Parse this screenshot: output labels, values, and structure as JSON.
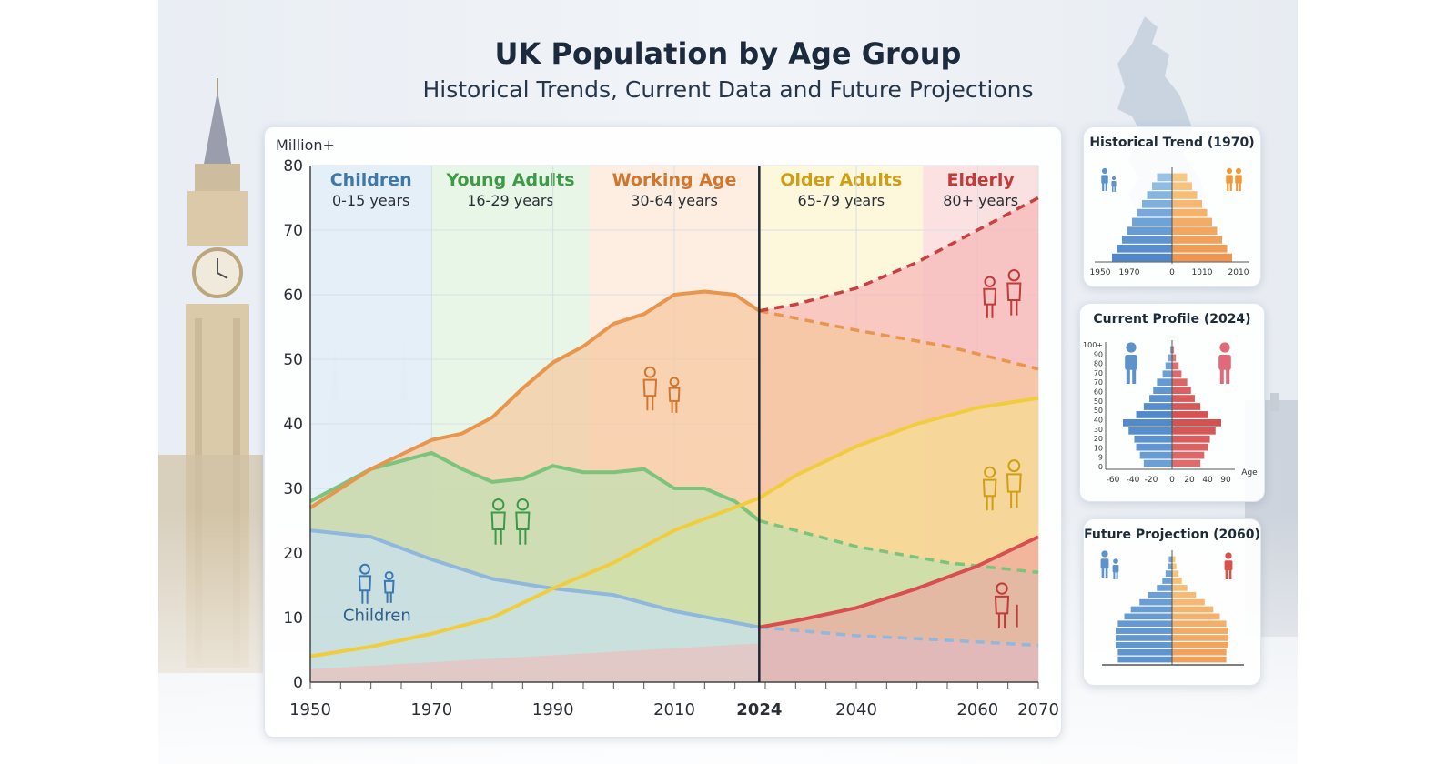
{
  "title": "UK Population by Age Group",
  "subtitle": "Historical Trends, Current Data and Future Projections",
  "colors": {
    "children": "#8fb8dc",
    "young_adults": "#8fcf8f",
    "working_age": "#f0a460",
    "older_adults": "#f2d25a",
    "elderly": "#e06060"
  },
  "chart_data": [
    {
      "type": "area",
      "ylabel": "Million+",
      "ylim": [
        0,
        80
      ],
      "xlim": [
        1950,
        2070
      ],
      "x_ticks": [
        "1950",
        "1970",
        "1990",
        "2010",
        "2024",
        "2040",
        "2060",
        "2070"
      ],
      "x_tick_values": [
        1950,
        1970,
        1990,
        2010,
        2024,
        2040,
        2060,
        2070
      ],
      "y_ticks": [
        "0",
        "10",
        "20",
        "30",
        "40",
        "50",
        "60",
        "70",
        "80"
      ],
      "projection_start": 2024,
      "grid": true,
      "bands": [
        {
          "label": "Children",
          "sub": "0-15 years",
          "from": 1950,
          "to": 1970,
          "color": "#cfe2f3",
          "label_color": "#3f78a8"
        },
        {
          "label": "Young Adults",
          "sub": "16-29 years",
          "from": 1970,
          "to": 1996,
          "color": "#d4efd4",
          "label_color": "#3e9a46"
        },
        {
          "label": "Working Age",
          "sub": "30-64 years",
          "from": 1996,
          "to": 2024,
          "color": "#fbe0c8",
          "label_color": "#d2762e"
        },
        {
          "label": "Older Adults",
          "sub": "65-79 years",
          "from": 2024,
          "to": 2051,
          "color": "#fbf0c0",
          "label_color": "#cf9e16"
        },
        {
          "label": "Elderly",
          "sub": "80+ years",
          "from": 2051,
          "to": 2070,
          "color": "#f7c9c9",
          "label_color": "#c23a3a"
        }
      ],
      "series": [
        {
          "key": "children",
          "color": "#8fb8dc",
          "points": [
            [
              1950,
              23.5
            ],
            [
              1960,
              22.5
            ],
            [
              1970,
              19
            ],
            [
              1980,
              16
            ],
            [
              1990,
              14.5
            ],
            [
              2000,
              13.5
            ],
            [
              2010,
              11
            ],
            [
              2024,
              8.5
            ],
            [
              2040,
              7.2
            ],
            [
              2055,
              6.5
            ],
            [
              2070,
              5.7
            ]
          ]
        },
        {
          "key": "young_adults",
          "color": "#7cc47c",
          "points": [
            [
              1950,
              28
            ],
            [
              1960,
              33
            ],
            [
              1970,
              35.5
            ],
            [
              1975,
              33
            ],
            [
              1980,
              31
            ],
            [
              1985,
              31.5
            ],
            [
              1990,
              33.5
            ],
            [
              1995,
              32.5
            ],
            [
              2000,
              32.5
            ],
            [
              2005,
              33
            ],
            [
              2010,
              30
            ],
            [
              2015,
              30
            ],
            [
              2020,
              28
            ],
            [
              2024,
              25
            ],
            [
              2040,
              21
            ],
            [
              2055,
              18.5
            ],
            [
              2070,
              17
            ]
          ]
        },
        {
          "key": "working_age",
          "color": "#e8954e",
          "points": [
            [
              1950,
              27
            ],
            [
              1960,
              33
            ],
            [
              1970,
              37.5
            ],
            [
              1975,
              38.5
            ],
            [
              1980,
              41
            ],
            [
              1985,
              45.5
            ],
            [
              1990,
              49.5
            ],
            [
              1995,
              52
            ],
            [
              2000,
              55.5
            ],
            [
              2005,
              57
            ],
            [
              2010,
              60
            ],
            [
              2015,
              60.5
            ],
            [
              2020,
              60
            ],
            [
              2024,
              57.5
            ],
            [
              2040,
              54.5
            ],
            [
              2055,
              52
            ],
            [
              2070,
              48.5
            ]
          ]
        },
        {
          "key": "older_adults",
          "color": "#f0cd3e",
          "points": [
            [
              1950,
              4
            ],
            [
              1960,
              5.5
            ],
            [
              1970,
              7.5
            ],
            [
              1980,
              10
            ],
            [
              1990,
              14.5
            ],
            [
              2000,
              18.5
            ],
            [
              2010,
              23.5
            ],
            [
              2024,
              28.5
            ],
            [
              2030,
              32
            ],
            [
              2040,
              36.5
            ],
            [
              2050,
              40
            ],
            [
              2060,
              42.5
            ],
            [
              2070,
              44
            ]
          ]
        },
        {
          "key": "elderly",
          "color": "#d94e4e",
          "points": [
            [
              2024,
              8.5
            ],
            [
              2030,
              9.5
            ],
            [
              2040,
              11.5
            ],
            [
              2050,
              14.5
            ],
            [
              2060,
              18
            ],
            [
              2070,
              22.5
            ]
          ]
        },
        {
          "key": "elderly_total",
          "color": "#c94040",
          "points": [
            [
              2024,
              57.5
            ],
            [
              2030,
              58.5
            ],
            [
              2040,
              61
            ],
            [
              2050,
              65
            ],
            [
              2060,
              70
            ],
            [
              2070,
              75
            ]
          ]
        }
      ],
      "annotations": [
        {
          "text": "Children",
          "x": 1961,
          "y": 9.5
        }
      ]
    },
    {
      "type": "bar",
      "panel": "historical",
      "title": "Historical Trend (1970)",
      "x_ticks": [
        "1950",
        "1970",
        "0",
        "1010",
        "2010"
      ],
      "male": [
        3,
        4,
        5,
        6,
        7,
        8,
        9,
        10,
        11,
        12
      ],
      "female": [
        3,
        4,
        5,
        6,
        7,
        8,
        9,
        10,
        11,
        12
      ]
    },
    {
      "type": "bar",
      "panel": "current",
      "title": "Current Profile (2024)",
      "y_ticks": [
        "100+",
        "90",
        "80",
        "70",
        "70",
        "60",
        "50",
        "50",
        "40",
        "30",
        "20",
        "10",
        "9",
        "0"
      ],
      "x_ticks": [
        "-60",
        "-40",
        "-20",
        "0",
        "20",
        "40",
        "90"
      ],
      "xlabel": "Age",
      "male": [
        2,
        4,
        7,
        10,
        16,
        20,
        24,
        30,
        38,
        52,
        46,
        40,
        38,
        34,
        30
      ],
      "female": [
        2,
        4,
        7,
        10,
        16,
        20,
        24,
        30,
        38,
        52,
        46,
        40,
        38,
        34,
        30
      ]
    },
    {
      "type": "bar",
      "panel": "future",
      "title": "Future Projection (2060)",
      "male": [
        3,
        4,
        6,
        9,
        14,
        22,
        30,
        38,
        44,
        50,
        52,
        52,
        52,
        50,
        50
      ],
      "female": [
        3,
        4,
        6,
        9,
        14,
        22,
        30,
        38,
        44,
        50,
        52,
        52,
        52,
        50,
        50
      ]
    }
  ]
}
